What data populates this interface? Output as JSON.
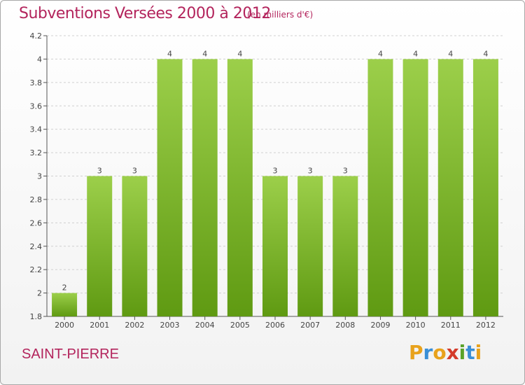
{
  "chart_data": {
    "type": "bar",
    "title": "Subventions Versées 2000 à 2012",
    "subtitle": "(en milliers d'€)",
    "categories": [
      "2000",
      "2001",
      "2002",
      "2003",
      "2004",
      "2005",
      "2006",
      "2007",
      "2008",
      "2009",
      "2010",
      "2011",
      "2012"
    ],
    "values": [
      2,
      3,
      3,
      4,
      4,
      4,
      3,
      3,
      3,
      4,
      4,
      4,
      4
    ],
    "data_labels": [
      "2",
      "3",
      "3",
      "4",
      "4",
      "4",
      "3",
      "3",
      "3",
      "4",
      "4",
      "4",
      "4"
    ],
    "y_ticks": [
      "1.8",
      "2",
      "2.2",
      "2.4",
      "2.6",
      "2.8",
      "3",
      "3.2",
      "3.4",
      "3.6",
      "3.8",
      "4",
      "4.2"
    ],
    "y_tick_values": [
      1.8,
      2,
      2.2,
      2.4,
      2.6,
      2.8,
      3,
      3.2,
      3.4,
      3.6,
      3.8,
      4,
      4.2
    ],
    "ylim": [
      1.8,
      4.2
    ],
    "xlabel": "",
    "ylabel": "",
    "grid": true,
    "bar_color_top": "#9ccf4a",
    "bar_color_bottom": "#5f9a12"
  },
  "place_name": "SAINT-PIERRE",
  "logo": {
    "letters": [
      "P",
      "r",
      "o",
      "x",
      "i",
      "t",
      "i"
    ],
    "colors": [
      "#e8a21c",
      "#3a8fd6",
      "#e8a21c",
      "#d43b2a",
      "#5aa22a",
      "#3a8fd6",
      "#e8a21c"
    ]
  }
}
